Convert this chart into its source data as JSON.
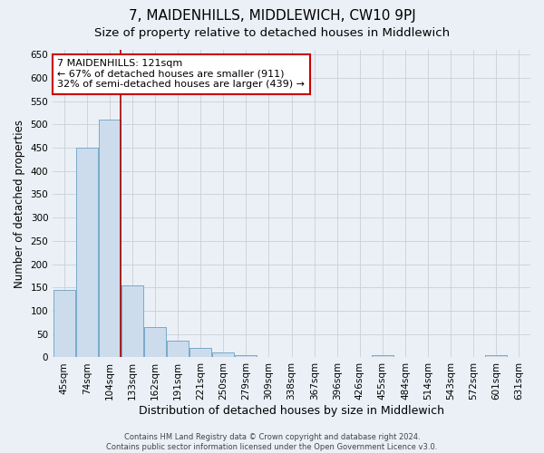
{
  "title": "7, MAIDENHILLS, MIDDLEWICH, CW10 9PJ",
  "subtitle": "Size of property relative to detached houses in Middlewich",
  "xlabel": "Distribution of detached houses by size in Middlewich",
  "ylabel": "Number of detached properties",
  "categories": [
    "45sqm",
    "74sqm",
    "104sqm",
    "133sqm",
    "162sqm",
    "191sqm",
    "221sqm",
    "250sqm",
    "279sqm",
    "309sqm",
    "338sqm",
    "367sqm",
    "396sqm",
    "426sqm",
    "455sqm",
    "484sqm",
    "514sqm",
    "543sqm",
    "572sqm",
    "601sqm",
    "631sqm"
  ],
  "values": [
    145,
    450,
    510,
    155,
    65,
    35,
    20,
    10,
    5,
    0,
    0,
    0,
    0,
    0,
    5,
    0,
    0,
    0,
    0,
    5,
    0
  ],
  "bar_color": "#ccdcec",
  "bar_edge_color": "#7aaac8",
  "grid_color": "#c8d0d8",
  "bg_color": "#eaf0f6",
  "vline_x": 2.5,
  "vline_color": "#aa0000",
  "annotation_text": "7 MAIDENHILLS: 121sqm\n← 67% of detached houses are smaller (911)\n32% of semi-detached houses are larger (439) →",
  "annotation_box_color": "#cc0000",
  "annotation_box_fill": "#ffffff",
  "ylim": [
    0,
    660
  ],
  "yticks": [
    0,
    50,
    100,
    150,
    200,
    250,
    300,
    350,
    400,
    450,
    500,
    550,
    600,
    650
  ],
  "footer": "Contains HM Land Registry data © Crown copyright and database right 2024.\nContains public sector information licensed under the Open Government Licence v3.0.",
  "title_fontsize": 11,
  "subtitle_fontsize": 9.5,
  "xlabel_fontsize": 9,
  "ylabel_fontsize": 8.5,
  "tick_fontsize": 7.5,
  "annotation_fontsize": 8,
  "footer_fontsize": 6
}
